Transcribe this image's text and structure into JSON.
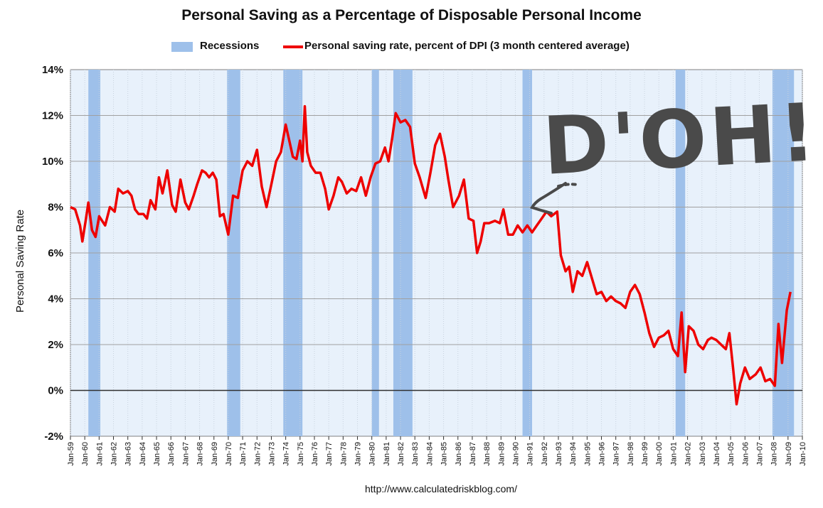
{
  "chart_data": {
    "type": "line",
    "title": "Personal Saving as a Percentage of Disposable Personal Income",
    "ylabel": "Personal Saving Rate",
    "xlabel": "",
    "ylim": [
      -2,
      14
    ],
    "y_ticks": [
      "14%",
      "12%",
      "10%",
      "8%",
      "6%",
      "4%",
      "2%",
      "0%",
      "-2%"
    ],
    "x_range": [
      "1959-01",
      "2010-01"
    ],
    "x_tick_labels": [
      "Jan-59",
      "Jan-60",
      "Jan-61",
      "Jan-62",
      "Jan-63",
      "Jan-64",
      "Jan-65",
      "Jan-66",
      "Jan-67",
      "Jan-68",
      "Jan-69",
      "Jan-70",
      "Jan-71",
      "Jan-72",
      "Jan-73",
      "Jan-74",
      "Jan-75",
      "Jan-76",
      "Jan-77",
      "Jan-78",
      "Jan-79",
      "Jan-80",
      "Jan-81",
      "Jan-82",
      "Jan-83",
      "Jan-84",
      "Jan-85",
      "Jan-86",
      "Jan-87",
      "Jan-88",
      "Jan-89",
      "Jan-90",
      "Jan-91",
      "Jan-92",
      "Jan-93",
      "Jan-94",
      "Jan-95",
      "Jan-96",
      "Jan-97",
      "Jan-98",
      "Jan-99",
      "Jan-00",
      "Jan-01",
      "Jan-02",
      "Jan-03",
      "Jan-04",
      "Jan-05",
      "Jan-06",
      "Jan-07",
      "Jan-08",
      "Jan-09",
      "Jan-10"
    ],
    "grid": true,
    "legend_position": "top",
    "series": [
      {
        "name": "Personal saving rate, percent of DPI (3 month centered average)",
        "color": "#ee0000",
        "points": [
          [
            "1959-01",
            8.0
          ],
          [
            "1959-05",
            7.9
          ],
          [
            "1959-09",
            7.2
          ],
          [
            "1959-11",
            6.5
          ],
          [
            "1960-02",
            7.5
          ],
          [
            "1960-04",
            8.2
          ],
          [
            "1960-07",
            7.0
          ],
          [
            "1960-10",
            6.7
          ],
          [
            "1961-01",
            7.6
          ],
          [
            "1961-06",
            7.2
          ],
          [
            "1961-10",
            8.0
          ],
          [
            "1962-02",
            7.8
          ],
          [
            "1962-05",
            8.8
          ],
          [
            "1962-09",
            8.6
          ],
          [
            "1963-01",
            8.7
          ],
          [
            "1963-04",
            8.5
          ],
          [
            "1963-07",
            7.9
          ],
          [
            "1963-10",
            7.7
          ],
          [
            "1964-02",
            7.7
          ],
          [
            "1964-05",
            7.5
          ],
          [
            "1964-08",
            8.3
          ],
          [
            "1964-12",
            7.9
          ],
          [
            "1965-03",
            9.3
          ],
          [
            "1965-06",
            8.6
          ],
          [
            "1965-10",
            9.6
          ],
          [
            "1966-02",
            8.1
          ],
          [
            "1966-05",
            7.8
          ],
          [
            "1966-09",
            9.2
          ],
          [
            "1967-01",
            8.2
          ],
          [
            "1967-04",
            7.9
          ],
          [
            "1967-08",
            8.5
          ],
          [
            "1967-11",
            9.0
          ],
          [
            "1968-03",
            9.6
          ],
          [
            "1968-06",
            9.5
          ],
          [
            "1968-09",
            9.3
          ],
          [
            "1968-12",
            9.5
          ],
          [
            "1969-03",
            9.2
          ],
          [
            "1969-06",
            7.6
          ],
          [
            "1969-09",
            7.7
          ],
          [
            "1970-01",
            6.8
          ],
          [
            "1970-05",
            8.5
          ],
          [
            "1970-09",
            8.4
          ],
          [
            "1971-01",
            9.6
          ],
          [
            "1971-05",
            10.0
          ],
          [
            "1971-09",
            9.8
          ],
          [
            "1972-01",
            10.5
          ],
          [
            "1972-05",
            8.9
          ],
          [
            "1972-09",
            8.0
          ],
          [
            "1973-01",
            9.0
          ],
          [
            "1973-05",
            10.0
          ],
          [
            "1973-09",
            10.4
          ],
          [
            "1974-01",
            11.6
          ],
          [
            "1974-04",
            10.9
          ],
          [
            "1974-07",
            10.2
          ],
          [
            "1974-10",
            10.1
          ],
          [
            "1975-01",
            10.9
          ],
          [
            "1975-03",
            10.0
          ],
          [
            "1975-05",
            12.4
          ],
          [
            "1975-07",
            10.4
          ],
          [
            "1975-10",
            9.8
          ],
          [
            "1976-02",
            9.5
          ],
          [
            "1976-06",
            9.5
          ],
          [
            "1976-10",
            8.8
          ],
          [
            "1977-01",
            7.9
          ],
          [
            "1977-05",
            8.5
          ],
          [
            "1977-09",
            9.3
          ],
          [
            "1977-12",
            9.1
          ],
          [
            "1978-04",
            8.6
          ],
          [
            "1978-08",
            8.8
          ],
          [
            "1978-12",
            8.7
          ],
          [
            "1979-04",
            9.3
          ],
          [
            "1979-08",
            8.5
          ],
          [
            "1979-12",
            9.3
          ],
          [
            "1980-04",
            9.9
          ],
          [
            "1980-08",
            10.0
          ],
          [
            "1980-12",
            10.6
          ],
          [
            "1981-03",
            10.0
          ],
          [
            "1981-06",
            11.0
          ],
          [
            "1981-09",
            12.1
          ],
          [
            "1982-01",
            11.7
          ],
          [
            "1982-05",
            11.8
          ],
          [
            "1982-09",
            11.5
          ],
          [
            "1983-01",
            9.9
          ],
          [
            "1983-05",
            9.3
          ],
          [
            "1983-10",
            8.4
          ],
          [
            "1984-02",
            9.5
          ],
          [
            "1984-06",
            10.7
          ],
          [
            "1984-10",
            11.2
          ],
          [
            "1985-02",
            10.2
          ],
          [
            "1985-05",
            9.2
          ],
          [
            "1985-09",
            8.0
          ],
          [
            "1986-02",
            8.5
          ],
          [
            "1986-06",
            9.2
          ],
          [
            "1986-10",
            7.5
          ],
          [
            "1987-02",
            7.4
          ],
          [
            "1987-05",
            6.0
          ],
          [
            "1987-08",
            6.5
          ],
          [
            "1987-11",
            7.3
          ],
          [
            "1988-03",
            7.3
          ],
          [
            "1988-08",
            7.4
          ],
          [
            "1988-12",
            7.3
          ],
          [
            "1989-03",
            7.9
          ],
          [
            "1989-07",
            6.8
          ],
          [
            "1989-11",
            6.8
          ],
          [
            "1990-03",
            7.2
          ],
          [
            "1990-07",
            6.9
          ],
          [
            "1990-11",
            7.2
          ],
          [
            "1991-03",
            6.9
          ],
          [
            "1991-07",
            7.2
          ],
          [
            "1991-11",
            7.5
          ],
          [
            "1992-03",
            7.8
          ],
          [
            "1992-07",
            7.6
          ],
          [
            "1992-12",
            7.8
          ],
          [
            "1993-03",
            5.9
          ],
          [
            "1993-07",
            5.2
          ],
          [
            "1993-10",
            5.4
          ],
          [
            "1994-01",
            4.3
          ],
          [
            "1994-05",
            5.2
          ],
          [
            "1994-09",
            5.0
          ],
          [
            "1995-01",
            5.6
          ],
          [
            "1995-05",
            4.9
          ],
          [
            "1995-09",
            4.2
          ],
          [
            "1996-01",
            4.3
          ],
          [
            "1996-05",
            3.9
          ],
          [
            "1996-09",
            4.1
          ],
          [
            "1997-01",
            3.9
          ],
          [
            "1997-05",
            3.8
          ],
          [
            "1997-09",
            3.6
          ],
          [
            "1998-01",
            4.3
          ],
          [
            "1998-05",
            4.6
          ],
          [
            "1998-09",
            4.2
          ],
          [
            "1999-01",
            3.4
          ],
          [
            "1999-05",
            2.5
          ],
          [
            "1999-09",
            1.9
          ],
          [
            "2000-01",
            2.3
          ],
          [
            "2000-05",
            2.4
          ],
          [
            "2000-09",
            2.6
          ],
          [
            "2001-01",
            1.8
          ],
          [
            "2001-05",
            1.5
          ],
          [
            "2001-08",
            3.4
          ],
          [
            "2001-11",
            0.8
          ],
          [
            "2002-02",
            2.8
          ],
          [
            "2002-06",
            2.6
          ],
          [
            "2002-10",
            2.0
          ],
          [
            "2003-02",
            1.8
          ],
          [
            "2003-06",
            2.2
          ],
          [
            "2003-09",
            2.3
          ],
          [
            "2004-01",
            2.2
          ],
          [
            "2004-05",
            2.0
          ],
          [
            "2004-09",
            1.8
          ],
          [
            "2004-12",
            2.5
          ],
          [
            "2005-03",
            1.0
          ],
          [
            "2005-06",
            -0.6
          ],
          [
            "2005-09",
            0.3
          ],
          [
            "2006-01",
            1.0
          ],
          [
            "2006-05",
            0.5
          ],
          [
            "2006-10",
            0.7
          ],
          [
            "2007-02",
            1.0
          ],
          [
            "2007-06",
            0.4
          ],
          [
            "2007-10",
            0.5
          ],
          [
            "2008-02",
            0.2
          ],
          [
            "2008-05",
            2.9
          ],
          [
            "2008-08",
            1.2
          ],
          [
            "2008-12",
            3.5
          ],
          [
            "2009-03",
            4.3
          ]
        ]
      }
    ],
    "recession_series_name": "Recessions",
    "recessions": [
      [
        "1960-04",
        "1961-02"
      ],
      [
        "1969-12",
        "1970-11"
      ],
      [
        "1973-11",
        "1975-03"
      ],
      [
        "1980-01",
        "1980-07"
      ],
      [
        "1981-07",
        "1982-11"
      ],
      [
        "1990-07",
        "1991-03"
      ],
      [
        "2001-03",
        "2001-11"
      ],
      [
        "2007-12",
        "2009-06"
      ]
    ],
    "annotations": [
      "D'OH!"
    ]
  },
  "source_url": "http://www.calculatedriskblog.com/",
  "colors": {
    "line": "#ee0000",
    "recession": "#9ec0ea",
    "plot_background": "#e8f1fb",
    "gridline": "#a0a0a0",
    "doodle": "#4a4a4a"
  }
}
